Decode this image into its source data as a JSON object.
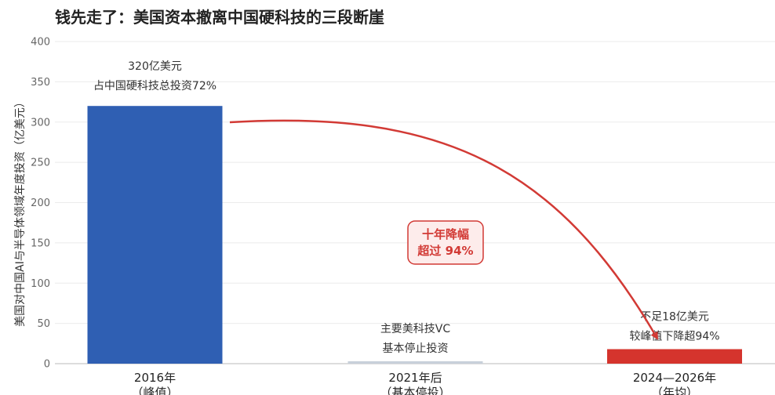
{
  "chart_data": {
    "type": "bar",
    "title": "钱先走了：美国资本撤离中国硬科技的三段断崖",
    "ylabel": "美国对中国AI与半导体领域年度投资（亿美元）",
    "ylim": [
      0,
      400
    ],
    "yticks": [
      "0",
      "50",
      "100",
      "150",
      "200",
      "250",
      "300",
      "350",
      "400"
    ],
    "grid": true,
    "categories": [
      {
        "line1": "2016年",
        "line2": "（峰值）"
      },
      {
        "line1": "2021年后",
        "line2": "（基本停投）"
      },
      {
        "line1": "2024—2026年",
        "line2": "（年均）"
      }
    ],
    "values": [
      320,
      3,
      18
    ],
    "colors": [
      "#2f5fb3",
      "#c8d0da",
      "#d5342d"
    ],
    "annotations": [
      {
        "line1": "320亿美元",
        "line2": "占中国硬科技总投资72%"
      },
      {
        "line1": "主要美科技VC",
        "line2": "基本停止投资"
      },
      {
        "line1": "不足18亿美元",
        "line2": "较峰值下降超94%"
      }
    ],
    "decline_label": {
      "line1": "十年降幅",
      "line2": "超过 94%"
    },
    "arrow_color": "#d23a35"
  }
}
